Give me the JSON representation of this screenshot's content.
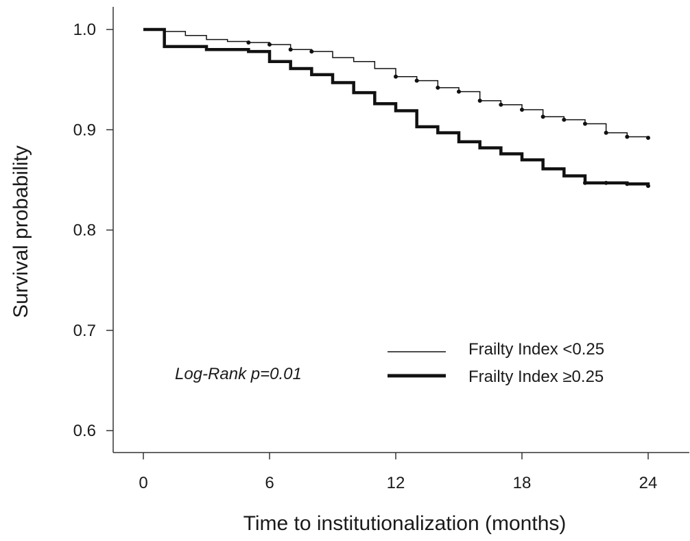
{
  "chart_data": {
    "type": "line",
    "step": true,
    "xlabel": "Time to institutionalization (months)",
    "ylabel": "Survival probability",
    "xlim": [
      -2,
      26
    ],
    "ylim": [
      0.58,
      1.02
    ],
    "xticks": [
      0,
      6,
      12,
      18,
      24
    ],
    "xtick_labels": [
      "0",
      "6",
      "12",
      "18",
      "24"
    ],
    "yticks": [
      0.6,
      0.7,
      0.8,
      0.9,
      1.0
    ],
    "ytick_labels": [
      "0.6",
      "0.7",
      "0.8",
      "0.9",
      "1.0"
    ],
    "grid": false,
    "legend_position": "bottom-right",
    "annotation": "Log-Rank p=0.01",
    "series": [
      {
        "name": "Frailty Index <0.25",
        "line": "thin",
        "points": [
          [
            0,
            1.0
          ],
          [
            1,
            0.998
          ],
          [
            2,
            0.994
          ],
          [
            3,
            0.99
          ],
          [
            4,
            0.988
          ],
          [
            5,
            0.987
          ],
          [
            6,
            0.985
          ],
          [
            7,
            0.98
          ],
          [
            8,
            0.978
          ],
          [
            9,
            0.972
          ],
          [
            10,
            0.968
          ],
          [
            11,
            0.961
          ],
          [
            12,
            0.953
          ],
          [
            13,
            0.949
          ],
          [
            14,
            0.942
          ],
          [
            15,
            0.938
          ],
          [
            16,
            0.929
          ],
          [
            17,
            0.925
          ],
          [
            18,
            0.92
          ],
          [
            19,
            0.913
          ],
          [
            20,
            0.91
          ],
          [
            21,
            0.906
          ],
          [
            22,
            0.897
          ],
          [
            23,
            0.893
          ],
          [
            24,
            0.892
          ]
        ],
        "censored": [
          [
            5,
            0.987
          ],
          [
            6,
            0.985
          ],
          [
            7,
            0.98
          ],
          [
            8,
            0.978
          ],
          [
            12,
            0.953
          ],
          [
            13,
            0.949
          ],
          [
            14,
            0.942
          ],
          [
            15,
            0.938
          ],
          [
            16,
            0.929
          ],
          [
            17,
            0.925
          ],
          [
            18,
            0.92
          ],
          [
            19,
            0.913
          ],
          [
            20,
            0.91
          ],
          [
            21,
            0.906
          ],
          [
            22,
            0.897
          ],
          [
            23,
            0.893
          ],
          [
            24,
            0.892
          ]
        ]
      },
      {
        "name": "Frailty Index ≥0.25",
        "line": "thick",
        "points": [
          [
            0,
            1.0
          ],
          [
            1,
            0.983
          ],
          [
            3,
            0.98
          ],
          [
            5,
            0.978
          ],
          [
            6,
            0.968
          ],
          [
            7,
            0.961
          ],
          [
            8,
            0.955
          ],
          [
            9,
            0.947
          ],
          [
            10,
            0.937
          ],
          [
            11,
            0.926
          ],
          [
            12,
            0.919
          ],
          [
            13,
            0.903
          ],
          [
            14,
            0.897
          ],
          [
            15,
            0.888
          ],
          [
            16,
            0.882
          ],
          [
            17,
            0.876
          ],
          [
            18,
            0.87
          ],
          [
            19,
            0.861
          ],
          [
            20,
            0.854
          ],
          [
            21,
            0.847
          ],
          [
            22,
            0.847
          ],
          [
            23,
            0.846
          ],
          [
            24,
            0.844
          ]
        ],
        "censored": [
          [
            21,
            0.847
          ],
          [
            22,
            0.847
          ],
          [
            23,
            0.846
          ],
          [
            24,
            0.844
          ]
        ]
      }
    ]
  }
}
